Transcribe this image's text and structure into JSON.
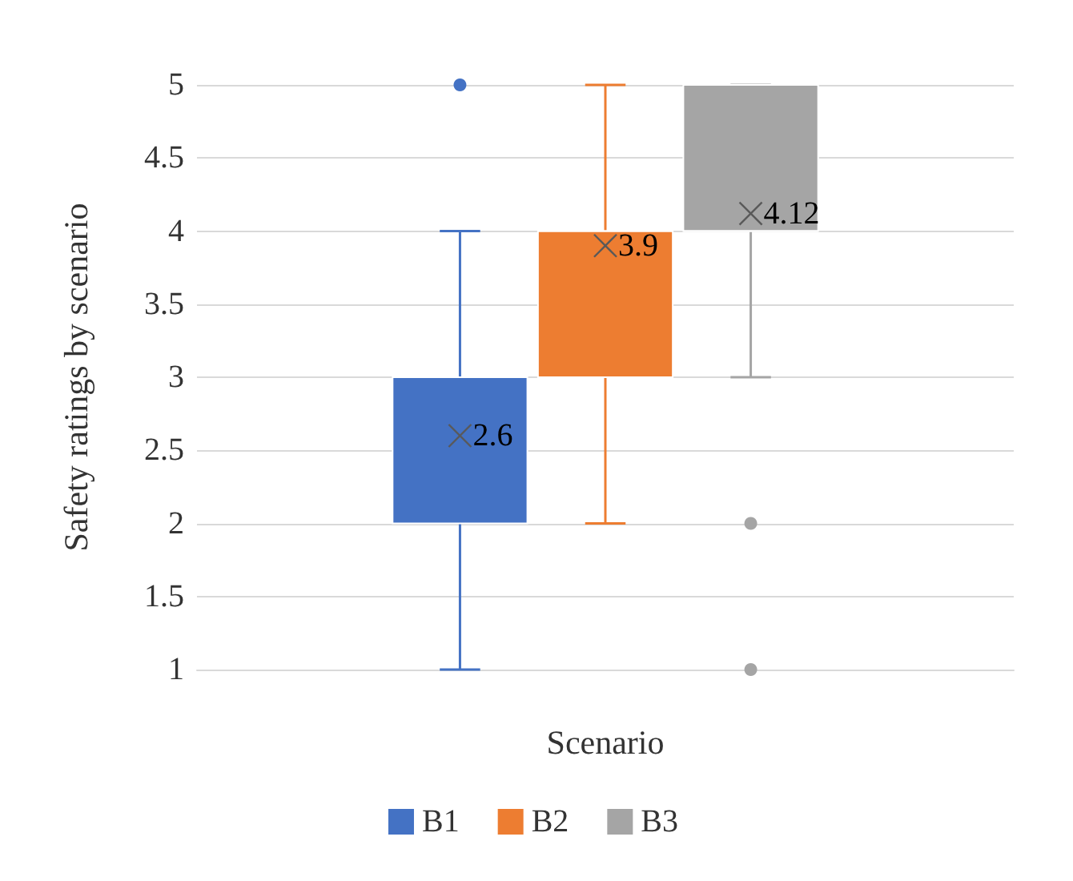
{
  "chart_data": {
    "type": "box",
    "xlabel": "Scenario",
    "ylabel": "Safety ratings by scenario",
    "categories": [
      null
    ],
    "series": [
      {
        "name": "B1",
        "color": "#4472c4",
        "boxes": [
          {
            "low": 1,
            "q1": 2,
            "median": 3,
            "q3": 3,
            "high": 4,
            "mean": 2.6,
            "outliers": [
              5
            ]
          }
        ],
        "value_labels": [
          "2.6"
        ]
      },
      {
        "name": "B2",
        "color": "#ed7d31",
        "boxes": [
          {
            "low": 2,
            "q1": 3,
            "median": 4,
            "q3": 4,
            "high": 5,
            "mean": 3.9
          }
        ],
        "value_labels": [
          "3.9"
        ]
      },
      {
        "name": "B3",
        "color": "#a5a5a5",
        "boxes": [
          {
            "low": 3,
            "q1": 4,
            "median": 4,
            "q3": 5,
            "high": 5,
            "mean": 4.12,
            "outliers": [
              2,
              1
            ]
          }
        ],
        "value_labels": [
          "4.12"
        ]
      }
    ],
    "ylim": [
      1,
      5
    ],
    "yticks": [
      1,
      1.5,
      2,
      2.5,
      3,
      3.5,
      4,
      4.5,
      5
    ],
    "grid": "y",
    "legend": "bottom"
  }
}
